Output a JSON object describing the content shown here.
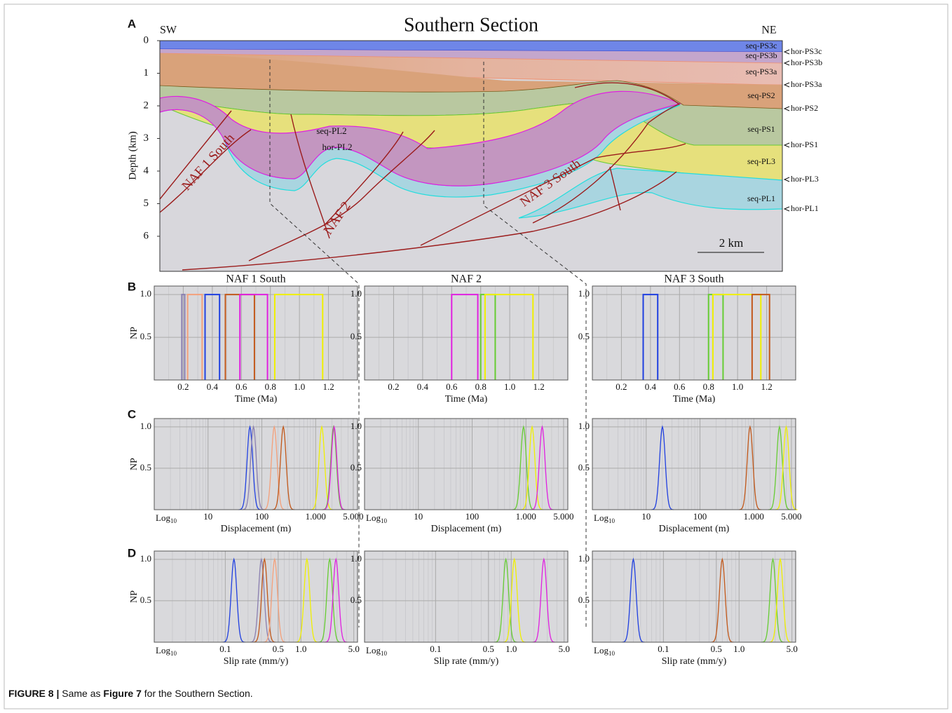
{
  "figure": {
    "panel_labels": {
      "a": "A",
      "b": "B",
      "c": "C",
      "d": "D"
    },
    "section": {
      "title": "Southern Section",
      "left_end": "SW",
      "right_end": "NE",
      "y_label": "Depth (km)",
      "y_ticks": [
        0,
        1,
        2,
        3,
        4,
        5,
        6
      ],
      "sequences": [
        "seq-PS3c",
        "seq-PS3b",
        "seq-PS3a",
        "seq-PS2",
        "seq-PS1",
        "seq-PL3",
        "seq-PL1"
      ],
      "horizons": [
        "hor-PS3c",
        "hor-PS3b",
        "hor-PS3a",
        "hor-PS2",
        "hor-PS1",
        "hor-PL3",
        "hor-PL1"
      ],
      "inner_labels": [
        "seq-PL2",
        "hor-PL2"
      ],
      "faults": [
        "NAF 1 South",
        "NAF 2",
        "NAF 3 South"
      ],
      "scale_bar": "2 km"
    },
    "columns": [
      "NAF 1 South",
      "NAF 2",
      "NAF 3 South"
    ],
    "y_label": "NP",
    "log_label": {
      "base": "Log",
      "sub": "10"
    },
    "rows": [
      {
        "type": "interval",
        "x_label": "Time (Ma)",
        "xlim": [
          0,
          1.4
        ],
        "xticks": [
          0.2,
          0.4,
          0.6,
          0.8,
          {
            "value": 1,
            "label": "1.0"
          },
          1.2
        ],
        "ylim": [
          0,
          1.1
        ],
        "yticks": [
          0.5,
          {
            "value": 1,
            "label": "1.0"
          }
        ],
        "np_max": 1,
        "panels": [
          {
            "series": [
              {
                "color": "#8a7fb0",
                "values": [
                  0.19,
                  0.21
                ]
              },
              {
                "color": "#f4a07a",
                "values": [
                  0.23,
                  0.33
                ]
              },
              {
                "color": "#1f3fe0",
                "values": [
                  0.35,
                  0.45
                ]
              },
              {
                "color": "#c2581a",
                "values": [
                  0.49,
                  0.69
                ]
              },
              {
                "color": "#e020e0",
                "values": [
                  0.59,
                  0.78
                ]
              },
              {
                "color": "#f0f000",
                "values": [
                  0.83,
                  1.16
                ]
              }
            ]
          },
          {
            "series": [
              {
                "color": "#e020e0",
                "values": [
                  0.6,
                  0.78
                ]
              },
              {
                "color": "#66cc33",
                "values": [
                  0.8,
                  0.9
                ]
              },
              {
                "color": "#f0f000",
                "values": [
                  0.83,
                  1.16
                ]
              }
            ]
          },
          {
            "series": [
              {
                "color": "#1f3fe0",
                "values": [
                  0.35,
                  0.45
                ]
              },
              {
                "color": "#66cc33",
                "values": [
                  0.8,
                  0.9
                ]
              },
              {
                "color": "#f0f000",
                "values": [
                  0.83,
                  1.16
                ]
              },
              {
                "color": "#c2581a",
                "values": [
                  1.1,
                  1.22
                ]
              }
            ]
          }
        ]
      },
      {
        "type": "density",
        "log_x": true,
        "x_label": "Displacement (m)",
        "xlim": [
          1,
          6000
        ],
        "xticks": [
          10,
          100,
          {
            "value": 1000,
            "label": "1.000"
          },
          {
            "value": 5000,
            "label": "5.000"
          }
        ],
        "ylim": [
          0,
          1.1
        ],
        "yticks": [
          0.5,
          {
            "value": 1,
            "label": "1.0"
          }
        ],
        "np_max": 1,
        "panels": [
          {
            "series": [
              {
                "color": "#1f3fe0",
                "peak": 60
              },
              {
                "color": "#8a7fb0",
                "peak": 70
              },
              {
                "color": "#f4a07a",
                "peak": 170
              },
              {
                "color": "#c2581a",
                "peak": 250
              },
              {
                "color": "#f0f000",
                "peak": 1300
              },
              {
                "color": "#66cc33",
                "peak": 2150
              },
              {
                "color": "#e020e0",
                "peak": 2200
              }
            ]
          },
          {
            "series": [
              {
                "color": "#66cc33",
                "peak": 900
              },
              {
                "color": "#f0f000",
                "peak": 1300
              },
              {
                "color": "#e020e0",
                "peak": 2000
              }
            ]
          },
          {
            "series": [
              {
                "color": "#1f3fe0",
                "peak": 20
              },
              {
                "color": "#c2581a",
                "peak": 850
              },
              {
                "color": "#66cc33",
                "peak": 3000
              },
              {
                "color": "#f0f000",
                "peak": 4000
              }
            ]
          }
        ]
      },
      {
        "type": "density",
        "log_x": true,
        "x_label": "Slip rate (mm/y)",
        "xlim": [
          0.0115,
          5.6
        ],
        "xticks": [
          0.1,
          0.5,
          {
            "value": 1,
            "label": "1.0"
          },
          {
            "value": 5,
            "label": "5.0"
          }
        ],
        "ylim": [
          0,
          1.1
        ],
        "yticks": [
          0.5,
          {
            "value": 1,
            "label": "1.0"
          }
        ],
        "np_max": 1,
        "panels": [
          {
            "series": [
              {
                "color": "#1f3fe0",
                "peak": 0.13
              },
              {
                "color": "#8a7fb0",
                "peak": 0.3
              },
              {
                "color": "#c2581a",
                "peak": 0.33
              },
              {
                "color": "#f4a07a",
                "peak": 0.45
              },
              {
                "color": "#f0f000",
                "peak": 1.2
              },
              {
                "color": "#66cc33",
                "peak": 2.4
              },
              {
                "color": "#e020e0",
                "peak": 2.9
              }
            ]
          },
          {
            "series": [
              {
                "color": "#66cc33",
                "peak": 0.85
              },
              {
                "color": "#f0f000",
                "peak": 1.1
              },
              {
                "color": "#e020e0",
                "peak": 2.7
              }
            ]
          },
          {
            "series": [
              {
                "color": "#1f3fe0",
                "peak": 0.04
              },
              {
                "color": "#c2581a",
                "peak": 0.6
              },
              {
                "color": "#66cc33",
                "peak": 2.8
              },
              {
                "color": "#f0f000",
                "peak": 3.5
              }
            ]
          }
        ]
      }
    ]
  },
  "caption": {
    "label": "FIGURE 8 |",
    "text1": " Same as ",
    "ref": "Figure 7",
    "text2": " for the Southern Section."
  }
}
